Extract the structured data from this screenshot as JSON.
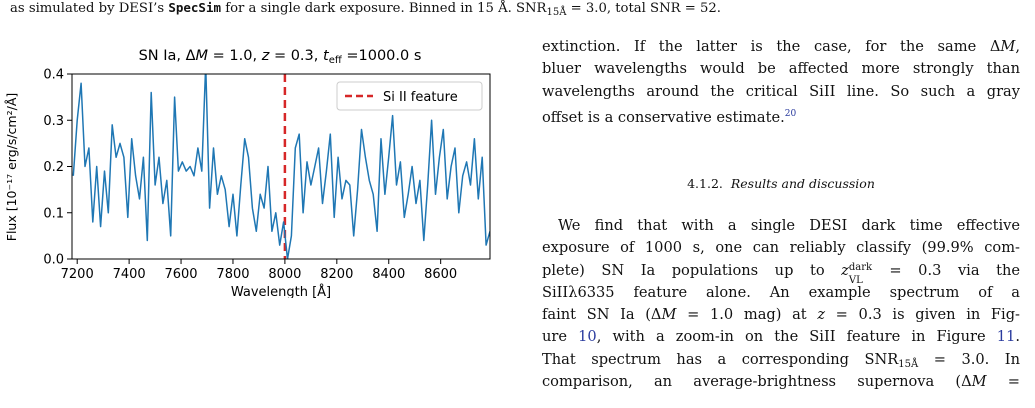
{
  "caption": {
    "prefix": "as simulated by DESI’s ",
    "code": "SpecSim",
    "suffix": " for a single dark exposure. Binned in 15 Å.  SNR",
    "snr_sub": "15Å",
    "snr_tail": " = 3.0, total SNR = 52."
  },
  "chart_data": {
    "type": "line",
    "title": "SN Ia, ΔM = 1.0, z = 0.3, t_eff =1000.0 s",
    "title_parts": {
      "a": "SN Ia, Δ",
      "b": "M",
      "c": " = 1.0, ",
      "d": "z",
      "e": " = 0.3, ",
      "f": "t",
      "g": "eff",
      "h": " =1000.0 s"
    },
    "xlabel": "Wavelength [Å]",
    "ylabel": "Flux [10⁻¹⁷ erg/s/cm²/Å]",
    "xlim": [
      7180,
      8790
    ],
    "ylim": [
      0.0,
      0.4
    ],
    "xticks": [
      "7200",
      "7400",
      "7600",
      "7800",
      "8000",
      "8200",
      "8400",
      "8600"
    ],
    "yticks": [
      "0.0",
      "0.1",
      "0.2",
      "0.3",
      "0.4"
    ],
    "legend": {
      "label": "Si II feature",
      "position": "top-right"
    },
    "vline": {
      "x": 8000,
      "label": "Si II feature",
      "color": "#d62728"
    },
    "series": [
      {
        "color": "#1f77b4",
        "x": [
          7185,
          7200,
          7215,
          7230,
          7245,
          7260,
          7275,
          7290,
          7305,
          7320,
          7335,
          7350,
          7365,
          7380,
          7395,
          7410,
          7425,
          7440,
          7455,
          7470,
          7485,
          7500,
          7515,
          7530,
          7545,
          7560,
          7575,
          7590,
          7605,
          7620,
          7635,
          7650,
          7665,
          7680,
          7695,
          7710,
          7725,
          7740,
          7755,
          7770,
          7785,
          7800,
          7815,
          7830,
          7845,
          7860,
          7875,
          7890,
          7905,
          7920,
          7935,
          7950,
          7965,
          7980,
          7995,
          8010,
          8025,
          8040,
          8055,
          8070,
          8085,
          8100,
          8115,
          8130,
          8145,
          8160,
          8175,
          8190,
          8205,
          8220,
          8235,
          8250,
          8265,
          8280,
          8295,
          8310,
          8325,
          8340,
          8355,
          8370,
          8385,
          8400,
          8415,
          8430,
          8445,
          8460,
          8475,
          8490,
          8505,
          8520,
          8535,
          8550,
          8565,
          8580,
          8595,
          8610,
          8625,
          8640,
          8655,
          8670,
          8685,
          8700,
          8715,
          8730,
          8745,
          8760,
          8775,
          8790
        ],
        "values": [
          0.18,
          0.3,
          0.38,
          0.2,
          0.24,
          0.08,
          0.2,
          0.07,
          0.19,
          0.1,
          0.29,
          0.22,
          0.25,
          0.22,
          0.09,
          0.26,
          0.18,
          0.13,
          0.22,
          0.04,
          0.36,
          0.16,
          0.22,
          0.12,
          0.17,
          0.05,
          0.35,
          0.19,
          0.21,
          0.19,
          0.2,
          0.18,
          0.24,
          0.19,
          0.42,
          0.11,
          0.24,
          0.14,
          0.18,
          0.15,
          0.07,
          0.14,
          0.05,
          0.16,
          0.26,
          0.22,
          0.11,
          0.06,
          0.14,
          0.11,
          0.2,
          0.06,
          0.1,
          0.03,
          0.08,
          0.0,
          0.05,
          0.24,
          0.27,
          0.1,
          0.21,
          0.16,
          0.2,
          0.24,
          0.12,
          0.19,
          0.27,
          0.09,
          0.22,
          0.13,
          0.17,
          0.16,
          0.05,
          0.15,
          0.28,
          0.22,
          0.17,
          0.14,
          0.06,
          0.26,
          0.14,
          0.22,
          0.31,
          0.16,
          0.21,
          0.09,
          0.14,
          0.2,
          0.12,
          0.17,
          0.04,
          0.16,
          0.3,
          0.14,
          0.22,
          0.28,
          0.13,
          0.2,
          0.24,
          0.1,
          0.18,
          0.21,
          0.16,
          0.26,
          0.13,
          0.22,
          0.03,
          0.06
        ]
      }
    ]
  },
  "text": {
    "p1": [
      {
        "t": "extinction. If the latter is the case, for the same Δ",
        "it": "M",
        "t2": ","
      },
      {
        "t": "bluer wavelengths would be affected more strongly than"
      },
      {
        "t": "wavelengths around the critical SiII line. So such a gray"
      },
      {
        "t": "offset is a conservative estimate.",
        "fn": "20"
      }
    ],
    "heading_num": "4.1.2.",
    "heading_title": "Results and discussion",
    "p2": {
      "l1": "We find that with a single DESI dark time effective",
      "l2": "exposure of 1000 s, one can reliably classify (99.9% com-",
      "l3a": "plete) SN Ia populations up to ",
      "l3z": "z",
      "l3sup": "dark",
      "l3sub": "VL",
      "l3b": " = 0.3 via the",
      "l4": "SiIIλ6335 feature alone.  An example spectrum of a",
      "l5a": "faint SN Ia (Δ",
      "l5m": "M",
      "l5b": " = 1.0 mag) at ",
      "l5z": "z",
      "l5c": " = 0.3 is given in Fig-",
      "l6a": "ure ",
      "l6ref1": "10",
      "l6b": ", with a zoom-in on the SiII feature in Figure ",
      "l6ref2": "11",
      "l6c": ".",
      "l7a": "That spectrum has a corresponding SNR",
      "l7sub": "15Å",
      "l7b": " = 3.0.  In",
      "l8a": "comparison, an average-brightness supernova (Δ",
      "l8m": "M",
      "l8b": " ="
    }
  }
}
